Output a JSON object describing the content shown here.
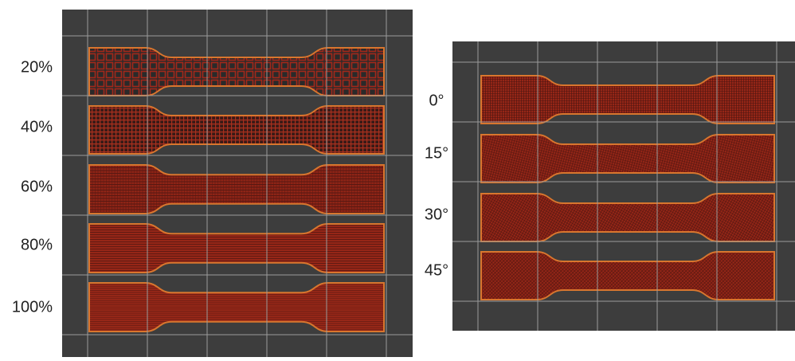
{
  "panels": [
    {
      "labels": [
        "20%",
        "40%",
        "60%",
        "80%",
        "100%"
      ]
    },
    {
      "labels": [
        "0°",
        "15°",
        "30°",
        "45°"
      ]
    }
  ]
}
